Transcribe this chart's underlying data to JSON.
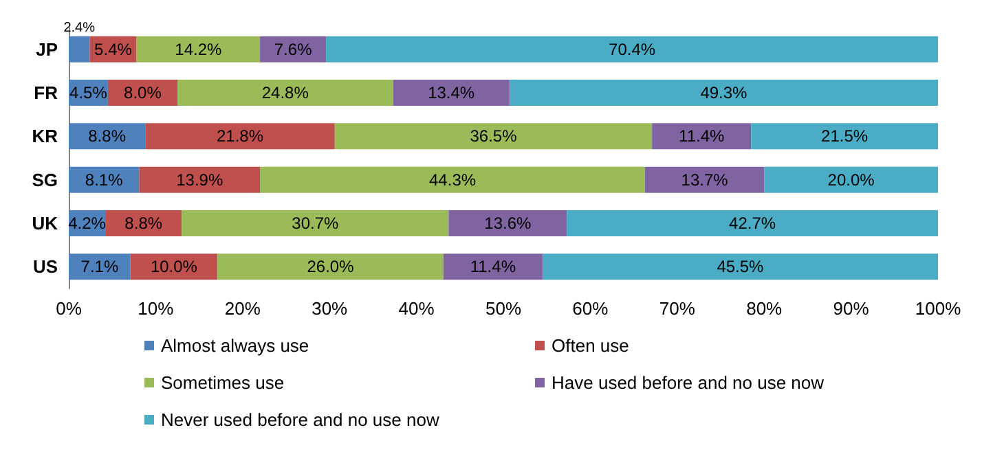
{
  "chart_data": {
    "type": "bar",
    "orientation": "horizontal",
    "stacked": true,
    "categories": [
      "JP",
      "FR",
      "KR",
      "SG",
      "UK",
      "US"
    ],
    "series": [
      {
        "name": "Almost always use",
        "color": "#4f81bd",
        "values": [
          2.4,
          4.5,
          8.8,
          8.1,
          4.2,
          7.1
        ],
        "value_labels": [
          "2.4%",
          "4.5%",
          "8.8%",
          "8.1%",
          "4.2%",
          "7.1%"
        ]
      },
      {
        "name": "Often use",
        "color": "#c0504d",
        "values": [
          5.4,
          8.0,
          21.8,
          13.9,
          8.8,
          10.0
        ],
        "value_labels": [
          "5.4%",
          "8.0%",
          "21.8%",
          "13.9%",
          "8.8%",
          "10.0%"
        ]
      },
      {
        "name": "Sometimes use",
        "color": "#9bbb59",
        "values": [
          14.2,
          24.8,
          36.5,
          44.3,
          30.7,
          26.0
        ],
        "value_labels": [
          "14.2%",
          "24.8%",
          "36.5%",
          "44.3%",
          "30.7%",
          "26.0%"
        ]
      },
      {
        "name": "Have used before and no use now",
        "color": "#8064a2",
        "values": [
          7.6,
          13.4,
          11.4,
          13.7,
          13.6,
          11.4
        ],
        "value_labels": [
          "7.6%",
          "13.4%",
          "11.4%",
          "13.7%",
          "13.6%",
          "11.4%"
        ]
      },
      {
        "name": "Never used before and no use now",
        "color": "#4bacc6",
        "values": [
          70.4,
          49.3,
          21.5,
          20.0,
          42.7,
          45.5
        ],
        "value_labels": [
          "70.4%",
          "49.3%",
          "21.5%",
          "20.0%",
          "42.7%",
          "45.5%"
        ]
      }
    ],
    "xlim": [
      0,
      100
    ],
    "xticks": [
      {
        "value": 0,
        "label": "0%"
      },
      {
        "value": 10,
        "label": "10%"
      },
      {
        "value": 20,
        "label": "20%"
      },
      {
        "value": 30,
        "label": "30%"
      },
      {
        "value": 40,
        "label": "40%"
      },
      {
        "value": 50,
        "label": "50%"
      },
      {
        "value": 60,
        "label": "60%"
      },
      {
        "value": 70,
        "label": "70%"
      },
      {
        "value": 80,
        "label": "80%"
      },
      {
        "value": 90,
        "label": "90%"
      },
      {
        "value": 100,
        "label": "100%"
      }
    ],
    "grid": false,
    "legend": "bottom"
  }
}
